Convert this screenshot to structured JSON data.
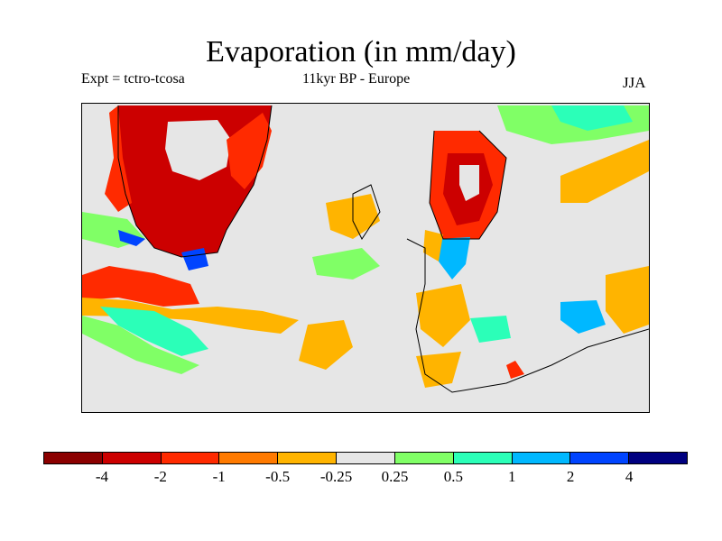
{
  "title": "Evaporation (in mm/day)",
  "subtitle_left": "Expt = tctro-tcosa",
  "subtitle_center": "11kyr BP - Europe",
  "subtitle_right": "JJA",
  "colorbar": {
    "colors": [
      "#8b0000",
      "#cc0000",
      "#ff2a00",
      "#ff7a00",
      "#ffb400",
      "#e6e6e6",
      "#80ff66",
      "#2bffb8",
      "#00b8ff",
      "#0044ff",
      "#000080"
    ],
    "ticks": [
      "-4",
      "-2",
      "-1",
      "-0.5",
      "-0.25",
      "0.25",
      "0.5",
      "1",
      "2",
      "4"
    ]
  },
  "colors": {
    "land": "#e6e6e6",
    "coast": "#000000"
  }
}
